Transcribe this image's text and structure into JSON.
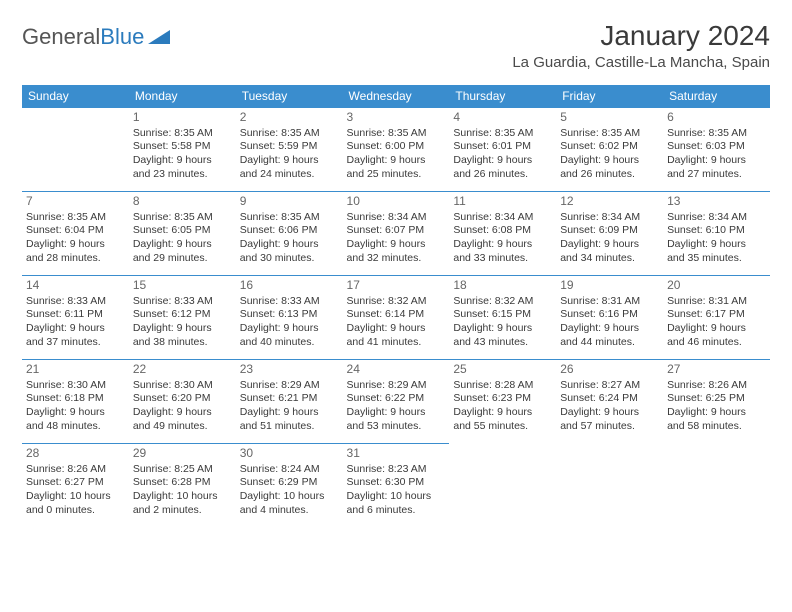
{
  "logo": {
    "part1": "General",
    "part2": "Blue"
  },
  "header": {
    "title": "January 2024",
    "location": "La Guardia, Castille-La Mancha, Spain"
  },
  "colors": {
    "header_bg": "#3a8dce",
    "header_text": "#ffffff",
    "cell_border": "#3a8dce",
    "body_text": "#3a3a3a",
    "daynum_text": "#666666"
  },
  "weekdays": [
    "Sunday",
    "Monday",
    "Tuesday",
    "Wednesday",
    "Thursday",
    "Friday",
    "Saturday"
  ],
  "weeks": [
    [
      null,
      {
        "day": "1",
        "sunrise": "Sunrise: 8:35 AM",
        "sunset": "Sunset: 5:58 PM",
        "dl1": "Daylight: 9 hours",
        "dl2": "and 23 minutes."
      },
      {
        "day": "2",
        "sunrise": "Sunrise: 8:35 AM",
        "sunset": "Sunset: 5:59 PM",
        "dl1": "Daylight: 9 hours",
        "dl2": "and 24 minutes."
      },
      {
        "day": "3",
        "sunrise": "Sunrise: 8:35 AM",
        "sunset": "Sunset: 6:00 PM",
        "dl1": "Daylight: 9 hours",
        "dl2": "and 25 minutes."
      },
      {
        "day": "4",
        "sunrise": "Sunrise: 8:35 AM",
        "sunset": "Sunset: 6:01 PM",
        "dl1": "Daylight: 9 hours",
        "dl2": "and 26 minutes."
      },
      {
        "day": "5",
        "sunrise": "Sunrise: 8:35 AM",
        "sunset": "Sunset: 6:02 PM",
        "dl1": "Daylight: 9 hours",
        "dl2": "and 26 minutes."
      },
      {
        "day": "6",
        "sunrise": "Sunrise: 8:35 AM",
        "sunset": "Sunset: 6:03 PM",
        "dl1": "Daylight: 9 hours",
        "dl2": "and 27 minutes."
      }
    ],
    [
      {
        "day": "7",
        "sunrise": "Sunrise: 8:35 AM",
        "sunset": "Sunset: 6:04 PM",
        "dl1": "Daylight: 9 hours",
        "dl2": "and 28 minutes."
      },
      {
        "day": "8",
        "sunrise": "Sunrise: 8:35 AM",
        "sunset": "Sunset: 6:05 PM",
        "dl1": "Daylight: 9 hours",
        "dl2": "and 29 minutes."
      },
      {
        "day": "9",
        "sunrise": "Sunrise: 8:35 AM",
        "sunset": "Sunset: 6:06 PM",
        "dl1": "Daylight: 9 hours",
        "dl2": "and 30 minutes."
      },
      {
        "day": "10",
        "sunrise": "Sunrise: 8:34 AM",
        "sunset": "Sunset: 6:07 PM",
        "dl1": "Daylight: 9 hours",
        "dl2": "and 32 minutes."
      },
      {
        "day": "11",
        "sunrise": "Sunrise: 8:34 AM",
        "sunset": "Sunset: 6:08 PM",
        "dl1": "Daylight: 9 hours",
        "dl2": "and 33 minutes."
      },
      {
        "day": "12",
        "sunrise": "Sunrise: 8:34 AM",
        "sunset": "Sunset: 6:09 PM",
        "dl1": "Daylight: 9 hours",
        "dl2": "and 34 minutes."
      },
      {
        "day": "13",
        "sunrise": "Sunrise: 8:34 AM",
        "sunset": "Sunset: 6:10 PM",
        "dl1": "Daylight: 9 hours",
        "dl2": "and 35 minutes."
      }
    ],
    [
      {
        "day": "14",
        "sunrise": "Sunrise: 8:33 AM",
        "sunset": "Sunset: 6:11 PM",
        "dl1": "Daylight: 9 hours",
        "dl2": "and 37 minutes."
      },
      {
        "day": "15",
        "sunrise": "Sunrise: 8:33 AM",
        "sunset": "Sunset: 6:12 PM",
        "dl1": "Daylight: 9 hours",
        "dl2": "and 38 minutes."
      },
      {
        "day": "16",
        "sunrise": "Sunrise: 8:33 AM",
        "sunset": "Sunset: 6:13 PM",
        "dl1": "Daylight: 9 hours",
        "dl2": "and 40 minutes."
      },
      {
        "day": "17",
        "sunrise": "Sunrise: 8:32 AM",
        "sunset": "Sunset: 6:14 PM",
        "dl1": "Daylight: 9 hours",
        "dl2": "and 41 minutes."
      },
      {
        "day": "18",
        "sunrise": "Sunrise: 8:32 AM",
        "sunset": "Sunset: 6:15 PM",
        "dl1": "Daylight: 9 hours",
        "dl2": "and 43 minutes."
      },
      {
        "day": "19",
        "sunrise": "Sunrise: 8:31 AM",
        "sunset": "Sunset: 6:16 PM",
        "dl1": "Daylight: 9 hours",
        "dl2": "and 44 minutes."
      },
      {
        "day": "20",
        "sunrise": "Sunrise: 8:31 AM",
        "sunset": "Sunset: 6:17 PM",
        "dl1": "Daylight: 9 hours",
        "dl2": "and 46 minutes."
      }
    ],
    [
      {
        "day": "21",
        "sunrise": "Sunrise: 8:30 AM",
        "sunset": "Sunset: 6:18 PM",
        "dl1": "Daylight: 9 hours",
        "dl2": "and 48 minutes."
      },
      {
        "day": "22",
        "sunrise": "Sunrise: 8:30 AM",
        "sunset": "Sunset: 6:20 PM",
        "dl1": "Daylight: 9 hours",
        "dl2": "and 49 minutes."
      },
      {
        "day": "23",
        "sunrise": "Sunrise: 8:29 AM",
        "sunset": "Sunset: 6:21 PM",
        "dl1": "Daylight: 9 hours",
        "dl2": "and 51 minutes."
      },
      {
        "day": "24",
        "sunrise": "Sunrise: 8:29 AM",
        "sunset": "Sunset: 6:22 PM",
        "dl1": "Daylight: 9 hours",
        "dl2": "and 53 minutes."
      },
      {
        "day": "25",
        "sunrise": "Sunrise: 8:28 AM",
        "sunset": "Sunset: 6:23 PM",
        "dl1": "Daylight: 9 hours",
        "dl2": "and 55 minutes."
      },
      {
        "day": "26",
        "sunrise": "Sunrise: 8:27 AM",
        "sunset": "Sunset: 6:24 PM",
        "dl1": "Daylight: 9 hours",
        "dl2": "and 57 minutes."
      },
      {
        "day": "27",
        "sunrise": "Sunrise: 8:26 AM",
        "sunset": "Sunset: 6:25 PM",
        "dl1": "Daylight: 9 hours",
        "dl2": "and 58 minutes."
      }
    ],
    [
      {
        "day": "28",
        "sunrise": "Sunrise: 8:26 AM",
        "sunset": "Sunset: 6:27 PM",
        "dl1": "Daylight: 10 hours",
        "dl2": "and 0 minutes."
      },
      {
        "day": "29",
        "sunrise": "Sunrise: 8:25 AM",
        "sunset": "Sunset: 6:28 PM",
        "dl1": "Daylight: 10 hours",
        "dl2": "and 2 minutes."
      },
      {
        "day": "30",
        "sunrise": "Sunrise: 8:24 AM",
        "sunset": "Sunset: 6:29 PM",
        "dl1": "Daylight: 10 hours",
        "dl2": "and 4 minutes."
      },
      {
        "day": "31",
        "sunrise": "Sunrise: 8:23 AM",
        "sunset": "Sunset: 6:30 PM",
        "dl1": "Daylight: 10 hours",
        "dl2": "and 6 minutes."
      },
      null,
      null,
      null
    ]
  ]
}
